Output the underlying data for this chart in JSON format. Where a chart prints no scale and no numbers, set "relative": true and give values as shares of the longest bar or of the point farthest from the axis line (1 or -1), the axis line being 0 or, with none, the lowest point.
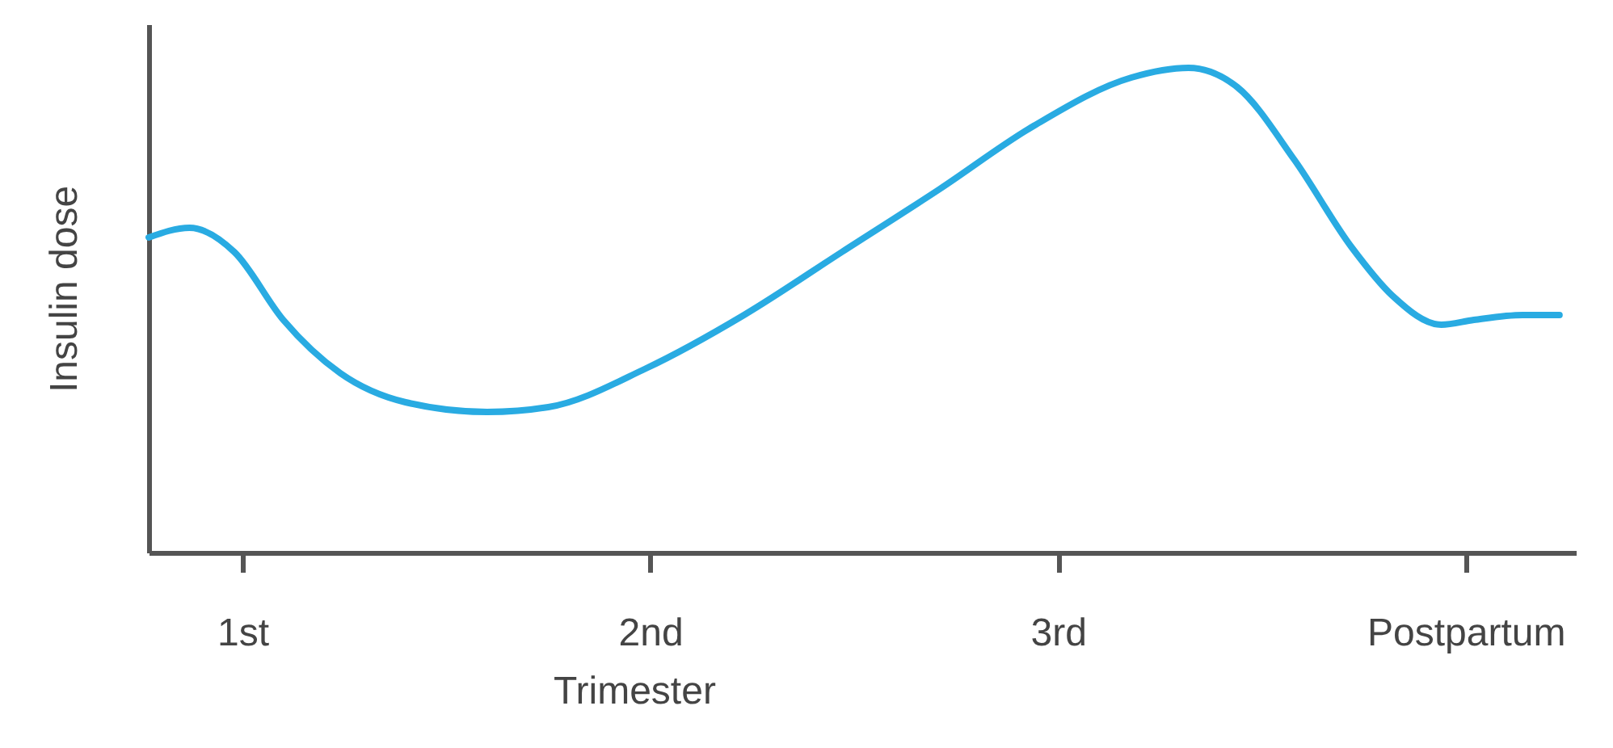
{
  "chart_data": {
    "type": "line",
    "relative": true,
    "xlabel": "Trimester",
    "ylabel": "Insulin dose",
    "grid": false,
    "marker": "none",
    "line_style": "solid",
    "xlim": [
      0.77,
      4.27
    ],
    "xticks": [
      {
        "value": 1,
        "label": "1st"
      },
      {
        "value": 2,
        "label": "2nd"
      },
      {
        "value": 3,
        "label": "3rd"
      },
      {
        "value": 4,
        "label": "Postpartum"
      }
    ],
    "series": [
      {
        "color": "#29abe2",
        "x": [
          0.77,
          0.87,
          0.98,
          1.1,
          1.24,
          1.4,
          1.6,
          1.75,
          1.99,
          2.23,
          2.47,
          2.71,
          2.94,
          3.18,
          3.32,
          3.44,
          3.58,
          3.72,
          3.82,
          3.94,
          4.02,
          4.14,
          4.23
        ],
        "values": [
          0.65,
          0.67,
          0.62,
          0.48,
          0.37,
          0.31,
          0.29,
          0.3,
          0.38,
          0.49,
          0.62,
          0.75,
          0.88,
          0.98,
          1,
          0.96,
          0.81,
          0.63,
          0.53,
          0.47,
          0.48,
          0.49,
          0.49
        ]
      }
    ]
  }
}
